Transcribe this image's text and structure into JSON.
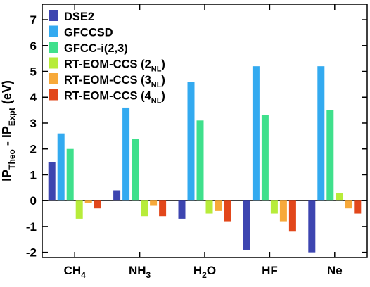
{
  "chart_data": {
    "type": "bar",
    "title": "",
    "xlabel": "",
    "ylabel": {
      "base": "IP",
      "sub1": "Theo",
      "mid": " - IP",
      "sub2": "Expt",
      "unit": " (eV)"
    },
    "ylim": [
      -2.2,
      7.6
    ],
    "yticks": [
      -2,
      -1,
      0,
      1,
      2,
      3,
      4,
      5,
      6,
      7
    ],
    "grid": false,
    "legend_position": "top-left",
    "categories": [
      {
        "base": "CH",
        "sub": "4",
        "post": ""
      },
      {
        "base": "NH",
        "sub": "3",
        "post": ""
      },
      {
        "base": "H",
        "sub": "2",
        "post": "O"
      },
      {
        "base": "HF",
        "sub": "",
        "post": ""
      },
      {
        "base": "Ne",
        "sub": "",
        "post": ""
      }
    ],
    "series": [
      {
        "name": "DSE2",
        "color": "#3d45b0",
        "values": [
          1.5,
          0.4,
          -0.7,
          -1.9,
          -2.0
        ]
      },
      {
        "name": "GFCCSD",
        "color": "#33aaf0",
        "values": [
          2.6,
          3.6,
          4.6,
          5.2,
          5.2
        ]
      },
      {
        "name": "GFCC-i(2,3)",
        "color": "#3fe08c",
        "values": [
          2.0,
          2.4,
          3.1,
          3.3,
          3.5
        ]
      },
      {
        "name": "RT-EOM-CCS (2",
        "name_sub": "NL",
        "name_post": ")",
        "color": "#b7ec3a",
        "values": [
          -0.7,
          -0.6,
          -0.5,
          -0.5,
          0.3
        ]
      },
      {
        "name": "RT-EOM-CCS (3",
        "name_sub": "NL",
        "name_post": ")",
        "color": "#f7a93a",
        "values": [
          -0.1,
          -0.2,
          -0.4,
          -0.8,
          -0.3
        ]
      },
      {
        "name": "RT-EOM-CCS (4",
        "name_sub": "NL",
        "name_post": ")",
        "color": "#e2471b",
        "values": [
          -0.3,
          -0.6,
          -0.8,
          -1.2,
          -0.5
        ]
      }
    ]
  }
}
